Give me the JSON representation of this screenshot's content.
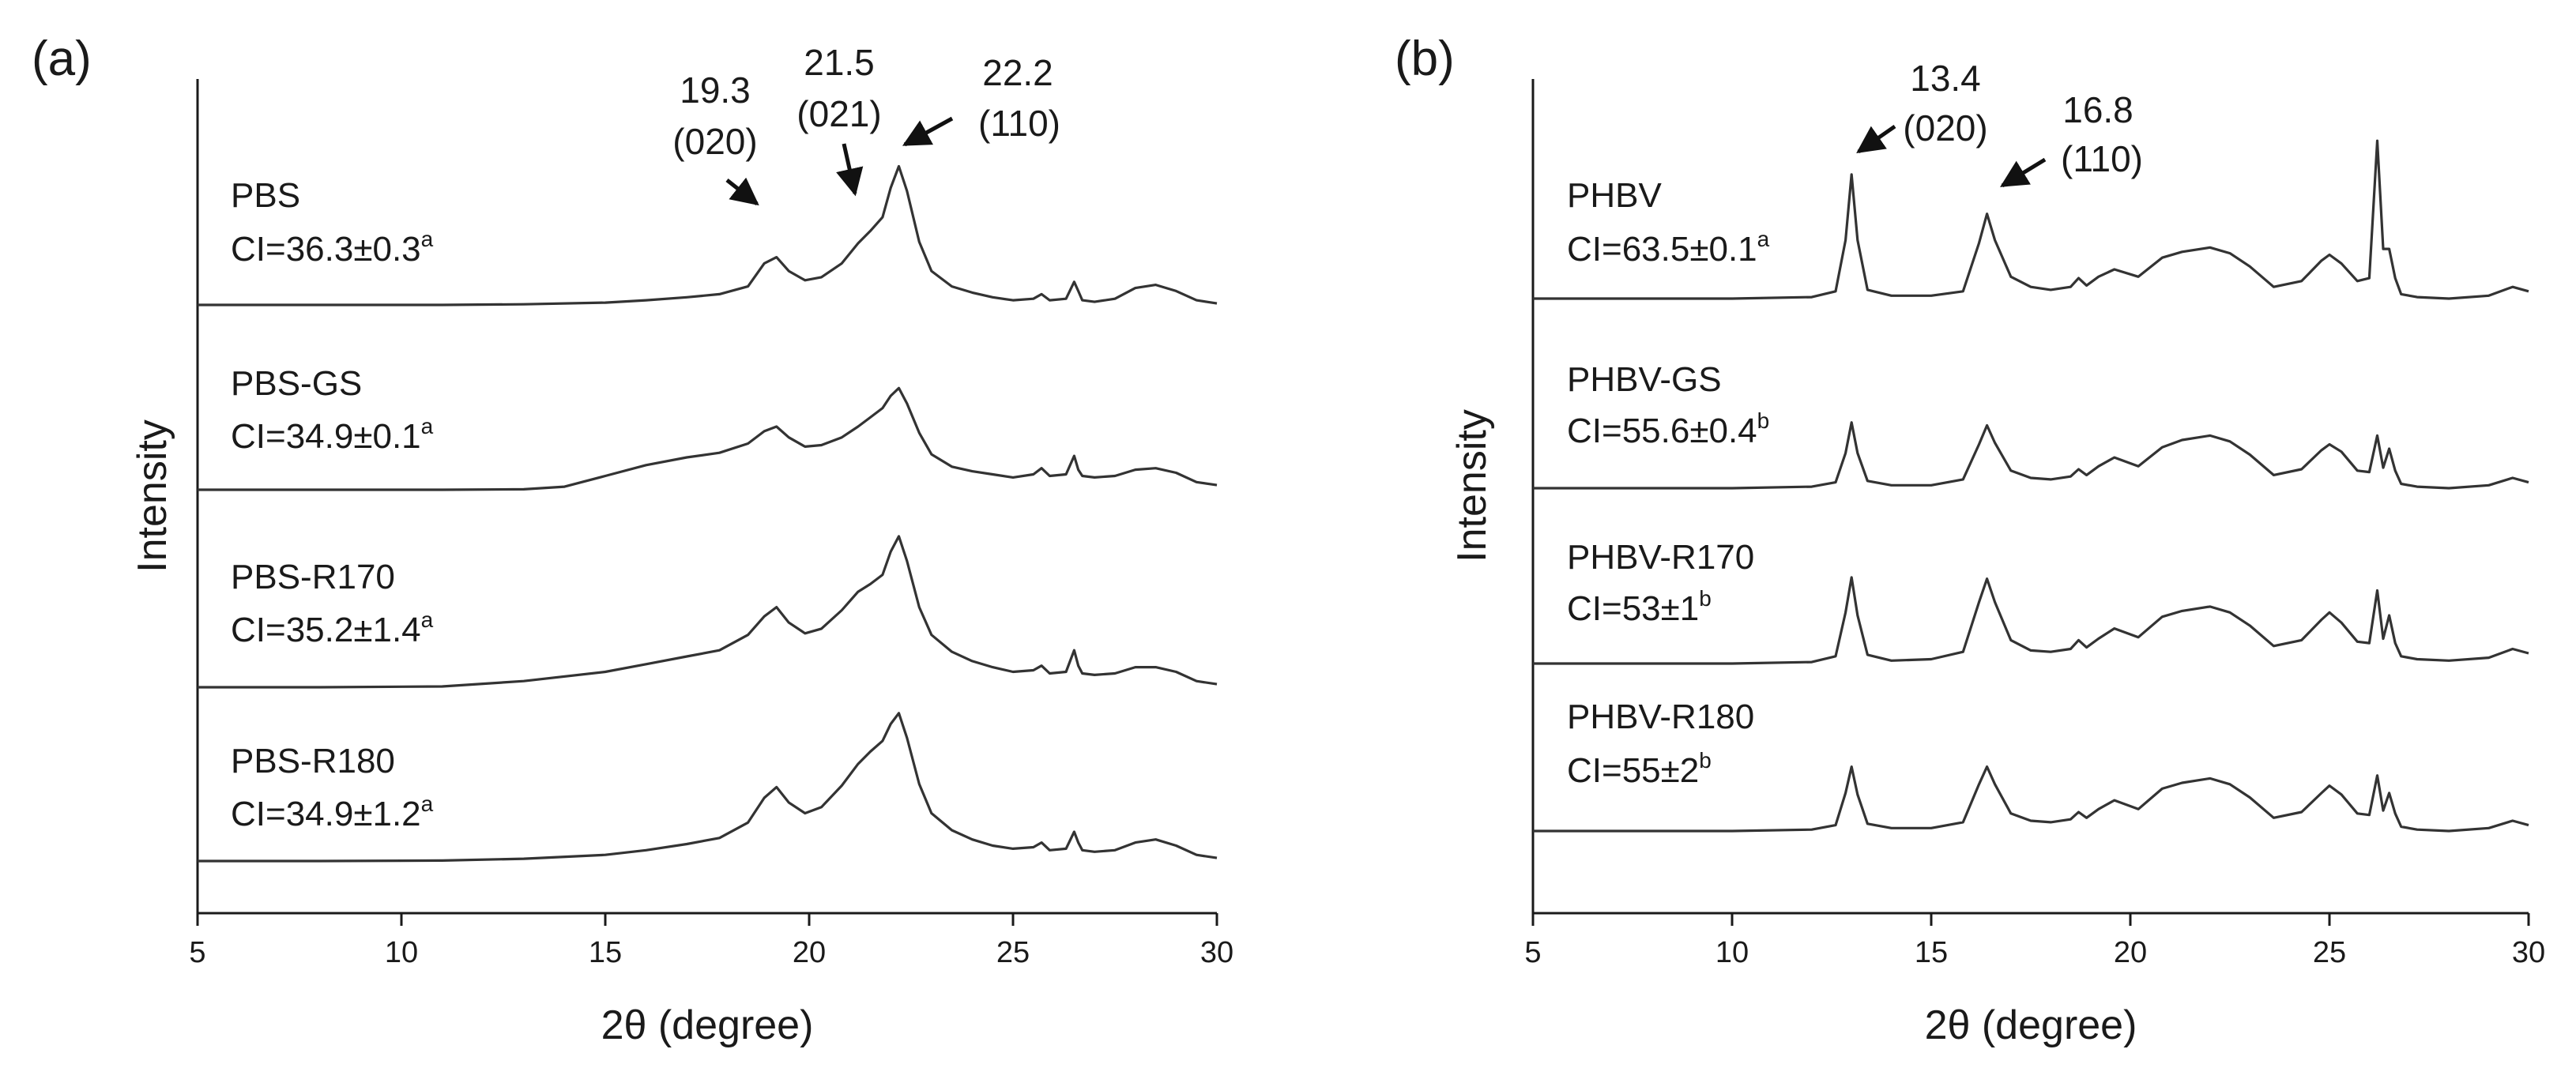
{
  "chart_data": [
    {
      "type": "line",
      "panel_label": "(a)",
      "xlabel": "2θ (degree)",
      "ylabel": "Intensity",
      "xlim": [
        5,
        30
      ],
      "x_ticks": [
        "5",
        "10",
        "15",
        "20",
        "25",
        "30"
      ],
      "yticks_shown": false,
      "peaks": [
        {
          "position": 19.3,
          "label": "19.3",
          "plane": "(020)"
        },
        {
          "position": 21.5,
          "label": "21.5",
          "plane": "(021)"
        },
        {
          "position": 22.2,
          "label": "22.2",
          "plane": "(110)"
        }
      ],
      "series": [
        {
          "name": "PBS",
          "ci_text": "CI=36.3±0.3",
          "ci_sup": "a",
          "x": [
            5,
            8,
            11,
            13,
            15,
            16,
            17,
            17.8,
            18.5,
            18.9,
            19.2,
            19.5,
            19.9,
            20.3,
            20.8,
            21.2,
            21.5,
            21.8,
            22.0,
            22.2,
            22.4,
            22.7,
            23.0,
            23.5,
            24.0,
            24.5,
            25.0,
            25.5,
            25.7,
            25.9,
            26.3,
            26.5,
            26.6,
            26.7,
            27.0,
            27.5,
            28.0,
            28.5,
            29.0,
            29.5,
            30
          ],
          "y": [
            0,
            0,
            0,
            0.4,
            1.5,
            3,
            5,
            7,
            12,
            27,
            31,
            22,
            16,
            18,
            27,
            40,
            48,
            57,
            76,
            90,
            74,
            41,
            22,
            12,
            8,
            5,
            3,
            4,
            7,
            3,
            4,
            15,
            9,
            3,
            2,
            4,
            11,
            13,
            9,
            3,
            1
          ]
        },
        {
          "name": "PBS-GS",
          "ci_text": "CI=34.9±0.1",
          "ci_sup": "a",
          "x": [
            5,
            8,
            11,
            13,
            14,
            15,
            16,
            17,
            17.8,
            18.5,
            18.9,
            19.2,
            19.5,
            19.9,
            20.3,
            20.8,
            21.2,
            21.5,
            21.8,
            22.0,
            22.2,
            22.4,
            22.7,
            23.0,
            23.5,
            24.0,
            24.5,
            25.0,
            25.5,
            25.7,
            25.9,
            26.3,
            26.5,
            26.6,
            26.7,
            27.0,
            27.5,
            28.0,
            28.5,
            29.0,
            29.5,
            30
          ],
          "y": [
            0,
            0,
            0,
            0.3,
            2,
            9,
            16,
            21,
            24,
            30,
            38,
            41,
            34,
            28,
            29,
            34,
            41,
            47,
            53,
            61,
            66,
            56,
            37,
            23,
            15,
            12,
            10,
            8,
            10,
            14,
            9,
            10,
            22,
            13,
            9,
            8,
            9,
            13,
            14,
            11,
            5,
            3
          ]
        },
        {
          "name": "PBS-R170",
          "ci_text": "CI=35.2±1.4",
          "ci_sup": "a",
          "x": [
            5,
            8,
            11,
            13,
            15,
            16,
            17,
            17.8,
            18.5,
            18.9,
            19.2,
            19.5,
            19.9,
            20.3,
            20.8,
            21.2,
            21.5,
            21.8,
            22.0,
            22.2,
            22.4,
            22.7,
            23.0,
            23.5,
            24.0,
            24.5,
            25.0,
            25.5,
            25.7,
            25.9,
            26.3,
            26.5,
            26.6,
            26.7,
            27.0,
            27.5,
            28.0,
            28.5,
            29.0,
            29.5,
            30
          ],
          "y": [
            0,
            0,
            0.5,
            4,
            10,
            15,
            20,
            24,
            34,
            46,
            52,
            42,
            35,
            38,
            50,
            62,
            67,
            73,
            88,
            98,
            82,
            52,
            34,
            23,
            17,
            13,
            10,
            11,
            14,
            9,
            10,
            24,
            14,
            9,
            8,
            9,
            13,
            13,
            10,
            4,
            2
          ]
        },
        {
          "name": "PBS-R180",
          "ci_text": "CI=34.9±1.2",
          "ci_sup": "a",
          "x": [
            5,
            8,
            11,
            13,
            15,
            16,
            17,
            17.8,
            18.5,
            18.9,
            19.2,
            19.5,
            19.9,
            20.3,
            20.8,
            21.2,
            21.5,
            21.8,
            22.0,
            22.2,
            22.4,
            22.7,
            23.0,
            23.5,
            24.0,
            24.5,
            25.0,
            25.5,
            25.7,
            25.9,
            26.3,
            26.5,
            26.6,
            26.7,
            27.0,
            27.5,
            28.0,
            28.5,
            29.0,
            29.5,
            30
          ],
          "y": [
            0,
            0,
            0.3,
            1.5,
            4,
            7,
            11,
            15,
            25,
            41,
            48,
            38,
            31,
            35,
            49,
            63,
            71,
            78,
            89,
            96,
            80,
            50,
            31,
            20,
            14,
            10,
            8,
            9,
            12,
            7,
            8,
            19,
            12,
            7,
            6,
            7,
            12,
            14,
            10,
            4,
            2
          ]
        }
      ]
    },
    {
      "type": "line",
      "panel_label": "(b)",
      "xlabel": "2θ (degree)",
      "ylabel": "Intensity",
      "xlim": [
        5,
        30
      ],
      "x_ticks": [
        "5",
        "10",
        "15",
        "20",
        "25",
        "30"
      ],
      "yticks_shown": false,
      "peaks": [
        {
          "position": 13.4,
          "label": "13.4",
          "plane": "(020)"
        },
        {
          "position": 16.8,
          "label": "16.8",
          "plane": "(110)"
        }
      ],
      "series": [
        {
          "name": "PHBV",
          "ci_text": "CI=63.5±0.1",
          "ci_sup": "a",
          "x": [
            5,
            10,
            12,
            12.6,
            12.85,
            13.0,
            13.15,
            13.4,
            14,
            15,
            15.8,
            16.2,
            16.4,
            16.6,
            17.0,
            17.5,
            18,
            18.5,
            18.7,
            18.9,
            19.2,
            19.6,
            20.2,
            20.8,
            21.3,
            22.0,
            22.5,
            23.0,
            23.6,
            24.3,
            24.8,
            25.0,
            25.3,
            25.7,
            26.0,
            26.2,
            26.35,
            26.5,
            26.65,
            26.8,
            27.2,
            28,
            29,
            29.6,
            30
          ],
          "y": [
            0,
            0,
            1,
            5,
            40,
            85,
            40,
            6,
            2,
            2,
            5,
            38,
            58,
            40,
            15,
            8,
            6,
            8,
            14,
            9,
            15,
            20,
            15,
            28,
            32,
            35,
            31,
            22,
            8,
            12,
            26,
            30,
            24,
            12,
            14,
            108,
            34,
            34,
            14,
            3,
            1,
            0,
            2,
            8,
            5
          ]
        },
        {
          "name": "PHBV-GS",
          "ci_text": "CI=55.6±0.4",
          "ci_sup": "b",
          "x": [
            5,
            10,
            12,
            12.6,
            12.85,
            13.0,
            13.15,
            13.4,
            14,
            15,
            15.8,
            16.2,
            16.4,
            16.6,
            17.0,
            17.5,
            18,
            18.5,
            18.7,
            18.9,
            19.2,
            19.6,
            20.2,
            20.8,
            21.3,
            22.0,
            22.5,
            23.0,
            23.6,
            24.3,
            24.8,
            25.0,
            25.3,
            25.7,
            26.0,
            26.2,
            26.35,
            26.5,
            26.65,
            26.8,
            27.2,
            28,
            29,
            29.6,
            30
          ],
          "y": [
            0,
            0,
            1,
            4,
            24,
            45,
            24,
            5,
            2,
            2,
            6,
            30,
            43,
            31,
            12,
            7,
            6,
            8,
            13,
            9,
            15,
            21,
            15,
            28,
            33,
            36,
            32,
            23,
            9,
            13,
            26,
            30,
            25,
            12,
            11,
            36,
            14,
            27,
            12,
            3,
            1,
            0,
            2,
            7,
            4
          ]
        },
        {
          "name": "PHBV-R170",
          "ci_text": "CI=53±1",
          "ci_sup": "b",
          "x": [
            5,
            10,
            12,
            12.6,
            12.85,
            13.0,
            13.15,
            13.4,
            14,
            15,
            15.8,
            16.2,
            16.4,
            16.6,
            17.0,
            17.5,
            18,
            18.5,
            18.7,
            18.9,
            19.2,
            19.6,
            20.2,
            20.8,
            21.3,
            22.0,
            22.5,
            23.0,
            23.6,
            24.3,
            24.8,
            25.0,
            25.3,
            25.7,
            26.0,
            26.2,
            26.35,
            26.5,
            26.65,
            26.8,
            27.2,
            28,
            29,
            29.6,
            30
          ],
          "y": [
            0,
            0,
            1,
            5,
            35,
            59,
            33,
            6,
            2,
            3,
            8,
            42,
            58,
            42,
            16,
            9,
            8,
            10,
            16,
            11,
            17,
            24,
            18,
            32,
            36,
            39,
            35,
            26,
            12,
            16,
            30,
            35,
            28,
            15,
            14,
            50,
            17,
            33,
            14,
            5,
            3,
            2,
            4,
            10,
            7
          ]
        },
        {
          "name": "PHBV-R180",
          "ci_text": "CI=55±2",
          "ci_sup": "b",
          "x": [
            5,
            10,
            12,
            12.6,
            12.85,
            13.0,
            13.15,
            13.4,
            14,
            15,
            15.8,
            16.2,
            16.4,
            16.6,
            17.0,
            17.5,
            18,
            18.5,
            18.7,
            18.9,
            19.2,
            19.6,
            20.2,
            20.8,
            21.3,
            22.0,
            22.5,
            23.0,
            23.6,
            24.3,
            24.8,
            25.0,
            25.3,
            25.7,
            26.0,
            26.2,
            26.35,
            26.5,
            26.65,
            26.8,
            27.2,
            28,
            29,
            29.6,
            30
          ],
          "y": [
            0,
            0,
            1,
            4,
            26,
            44,
            25,
            5,
            2,
            2,
            6,
            32,
            44,
            32,
            12,
            7,
            6,
            8,
            13,
            9,
            15,
            21,
            15,
            29,
            33,
            36,
            32,
            23,
            9,
            13,
            26,
            31,
            25,
            12,
            11,
            38,
            14,
            26,
            12,
            3,
            1,
            0,
            2,
            7,
            4
          ]
        }
      ]
    }
  ]
}
